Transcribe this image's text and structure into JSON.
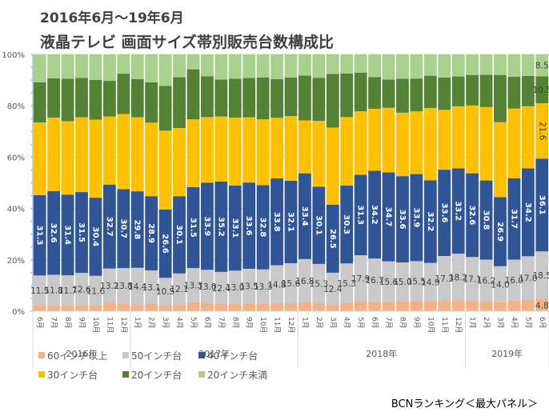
{
  "title_line1": "2016年6月～19年6月",
  "title_line2": "液晶テレビ 画面サイズ帯別販売台数構成比",
  "source": "BCNランキング＜最大パネル＞",
  "chart_data": {
    "type": "bar",
    "stacked": "percent",
    "title": "2016年6月～19年6月 液晶テレビ 画面サイズ帯別販売台数構成比",
    "xlabel": "",
    "ylabel": "",
    "ylim": [
      0,
      100
    ],
    "yticks": [
      "0%",
      "20%",
      "40%",
      "60%",
      "80%",
      "100%"
    ],
    "grid": true,
    "legend_position": "bottom-left",
    "categories": [
      "6月",
      "7月",
      "8月",
      "9月",
      "10月",
      "11月",
      "12月",
      "1月",
      "2月",
      "3月",
      "4月",
      "5月",
      "6月",
      "7月",
      "8月",
      "9月",
      "10月",
      "11月",
      "12月",
      "1月",
      "2月",
      "3月",
      "4月",
      "5月",
      "6月",
      "7月",
      "8月",
      "9月",
      "10月",
      "11月",
      "12月",
      "1月",
      "2月",
      "3月",
      "4月",
      "5月",
      "6月"
    ],
    "year_groups": [
      {
        "label": "2016年",
        "count": 7
      },
      {
        "label": "2017年",
        "count": 12
      },
      {
        "label": "2018年",
        "count": 12
      },
      {
        "label": "2019年",
        "count": 6
      }
    ],
    "series": [
      {
        "name": "60インチ以上",
        "color": "#f4b183",
        "values": [
          2.4,
          2.4,
          2.3,
          2.3,
          2.2,
          3.4,
          3.0,
          2.5,
          2.8,
          2.5,
          2.6,
          3.5,
          3.1,
          2.9,
          2.8,
          3.0,
          3.0,
          3.1,
          3.1,
          3.5,
          3.1,
          2.6,
          3.3,
          3.9,
          3.8,
          3.8,
          4.0,
          4.0,
          3.9,
          4.2,
          4.2,
          4.0,
          3.9,
          3.5,
          4.1,
          4.4,
          4.8
        ],
        "labels": [
          null,
          null,
          null,
          null,
          null,
          null,
          null,
          null,
          null,
          null,
          null,
          null,
          null,
          null,
          null,
          null,
          null,
          null,
          null,
          null,
          null,
          null,
          null,
          null,
          null,
          null,
          null,
          null,
          null,
          null,
          null,
          null,
          null,
          null,
          null,
          null,
          "4.8"
        ]
      },
      {
        "name": "50インチ台",
        "color": "#c9c9c9",
        "values": [
          11.5,
          11.8,
          11.7,
          12.6,
          11.6,
          13.2,
          13.8,
          14.4,
          13.1,
          10.5,
          12.1,
          13.3,
          13.0,
          12.4,
          13.0,
          13.5,
          13.3,
          14.8,
          15.6,
          16.8,
          15.3,
          12.4,
          15.3,
          17.9,
          16.7,
          15.6,
          15.0,
          15.5,
          14.9,
          17.3,
          18.2,
          17.1,
          16.2,
          14.0,
          16.0,
          17.0,
          18.5
        ],
        "labels": [
          "11.5",
          "11.8",
          "11.7",
          "12.6",
          "11.6",
          "13.2",
          "13.8",
          "14.4",
          "13.1",
          "10.5",
          "12.1",
          "13.3",
          "13.0",
          "12.4",
          "13.0",
          "13.5",
          "13.3",
          "14.8",
          "15.6",
          "16.8",
          "15.3",
          "12.4",
          "15.3",
          "17.9",
          "16.7",
          "15.6",
          "15.0",
          "15.5",
          "14.9",
          "17.3",
          "18.2",
          "17.1",
          "16.2",
          "14.0",
          "16.0",
          "17.0",
          "18.5"
        ]
      },
      {
        "name": "40インチ台",
        "color": "#2f5597",
        "values": [
          31.3,
          32.6,
          31.4,
          31.5,
          30.4,
          32.7,
          30.7,
          29.8,
          28.9,
          26.6,
          30.1,
          31.5,
          33.9,
          35.2,
          33.1,
          33.6,
          32.8,
          33.8,
          32.1,
          33.4,
          30.1,
          26.5,
          30.3,
          31.3,
          34.2,
          34.7,
          33.6,
          33.9,
          32.2,
          33.6,
          33.2,
          32.6,
          30.8,
          26.9,
          31.7,
          34.2,
          36.1
        ],
        "labels": [
          "31.3",
          "32.6",
          "31.4",
          "31.5",
          "30.4",
          "32.7",
          "30.7",
          "29.8",
          "28.9",
          "26.6",
          "30.1",
          "31.5",
          "33.9",
          "35.2",
          "33.1",
          "33.6",
          "32.8",
          "33.8",
          "32.1",
          "33.4",
          "30.1",
          "26.5",
          "30.3",
          "31.3",
          "34.2",
          "34.7",
          "33.6",
          "33.9",
          "32.2",
          "33.6",
          "33.2",
          "32.6",
          "30.8",
          "26.9",
          "31.7",
          "34.2",
          "36.1"
        ]
      },
      {
        "name": "30インチ台",
        "color": "#ffc000",
        "values": [
          28.3,
          28.6,
          28.6,
          29.1,
          30.4,
          26.5,
          29.3,
          28.8,
          28.6,
          30.7,
          26.5,
          26.4,
          25.6,
          25.3,
          26.5,
          25.4,
          25.6,
          23.6,
          25.2,
          20.6,
          25.6,
          30.0,
          26.7,
          24.7,
          24.1,
          25.1,
          24.7,
          24.4,
          28.1,
          23.3,
          24.2,
          26.4,
          28.6,
          29.2,
          27.1,
          24.2,
          21.6
        ],
        "labels": [
          null,
          null,
          null,
          null,
          null,
          null,
          null,
          null,
          null,
          null,
          null,
          null,
          null,
          null,
          null,
          null,
          null,
          null,
          null,
          null,
          null,
          null,
          null,
          null,
          null,
          null,
          null,
          null,
          null,
          null,
          null,
          null,
          null,
          null,
          null,
          null,
          "21.6"
        ]
      },
      {
        "name": "20インチ台",
        "color": "#548235",
        "values": [
          15.6,
          15.3,
          16.5,
          15.3,
          15.5,
          13.9,
          15.7,
          14.9,
          15.7,
          17.4,
          19.8,
          19.5,
          15.9,
          14.4,
          15.1,
          15.3,
          16.3,
          15.1,
          15.0,
          17.5,
          16.8,
          20.9,
          17.0,
          15.1,
          12.4,
          11.0,
          13.2,
          12.8,
          12.6,
          12.6,
          11.6,
          11.9,
          12.6,
          18.4,
          12.4,
          11.8,
          10.5
        ],
        "labels": [
          null,
          null,
          null,
          null,
          null,
          null,
          null,
          null,
          null,
          null,
          null,
          null,
          null,
          null,
          null,
          null,
          null,
          null,
          null,
          null,
          null,
          null,
          null,
          null,
          null,
          null,
          null,
          null,
          null,
          null,
          null,
          null,
          null,
          null,
          null,
          null,
          "10.5"
        ]
      },
      {
        "name": "20インチ未満",
        "color": "#a9d18e",
        "values": [
          10.9,
          9.3,
          9.5,
          9.2,
          9.9,
          10.3,
          7.5,
          9.6,
          10.9,
          12.3,
          8.9,
          5.8,
          8.5,
          9.8,
          9.5,
          9.2,
          9.0,
          9.6,
          9.0,
          8.2,
          9.1,
          7.6,
          7.4,
          7.1,
          8.8,
          9.8,
          9.5,
          9.4,
          8.3,
          9.0,
          8.6,
          8.0,
          7.9,
          8.0,
          8.7,
          8.4,
          8.5
        ],
        "labels": [
          null,
          null,
          null,
          null,
          null,
          null,
          null,
          null,
          null,
          null,
          null,
          null,
          null,
          null,
          null,
          null,
          null,
          null,
          null,
          null,
          null,
          null,
          null,
          null,
          null,
          null,
          null,
          null,
          null,
          null,
          null,
          null,
          null,
          null,
          null,
          null,
          "8.5"
        ]
      }
    ]
  },
  "legend": [
    {
      "label": "60インチ以上",
      "color": "#f4b183"
    },
    {
      "label": "50インチ台",
      "color": "#c9c9c9"
    },
    {
      "label": "40インチ台",
      "color": "#2f5597"
    },
    {
      "label": "30インチ台",
      "color": "#ffc000"
    },
    {
      "label": "20インチ台",
      "color": "#548235"
    },
    {
      "label": "20インチ未満",
      "color": "#a9d18e"
    }
  ]
}
